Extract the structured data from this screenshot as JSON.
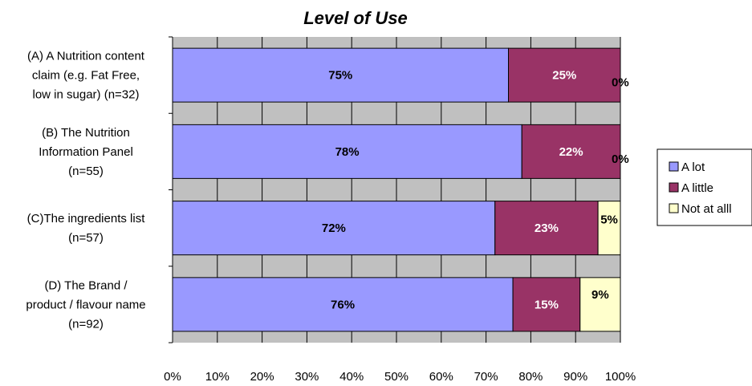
{
  "chart_data": {
    "type": "bar",
    "orientation": "horizontal",
    "stacked": true,
    "title": "Level of Use",
    "categories": [
      [
        "(A) A Nutrition content",
        "claim (e.g. Fat Free,",
        "low in sugar) (n=32)"
      ],
      [
        "(B) The Nutrition",
        "Information Panel",
        "(n=55)"
      ],
      [
        "(C)The ingredients list",
        "(n=57)"
      ],
      [
        "(D) The Brand /",
        "product / flavour name",
        "(n=92)"
      ]
    ],
    "series": [
      {
        "name": "A lot",
        "color": "#9999ff",
        "label_color": "#000000",
        "values": [
          75,
          78,
          72,
          76
        ],
        "labels": [
          "75%",
          "78%",
          "72%",
          "76%"
        ]
      },
      {
        "name": "A little",
        "color": "#993366",
        "label_color": "#ffffff",
        "values": [
          25,
          22,
          23,
          15
        ],
        "labels": [
          "25%",
          "22%",
          "23%",
          "15%"
        ]
      },
      {
        "name": "Not at alll",
        "color": "#ffffcc",
        "label_color": "#000000",
        "values": [
          0,
          0,
          5,
          9
        ],
        "labels": [
          "0%",
          "0%",
          "5%",
          "9%"
        ]
      }
    ],
    "x_ticks": [
      "0%",
      "10%",
      "20%",
      "30%",
      "40%",
      "50%",
      "60%",
      "70%",
      "80%",
      "90%",
      "100%"
    ],
    "xlim": [
      0,
      100
    ],
    "plot_background": "#c0c0c0",
    "grid": true,
    "legend_position": "right"
  }
}
